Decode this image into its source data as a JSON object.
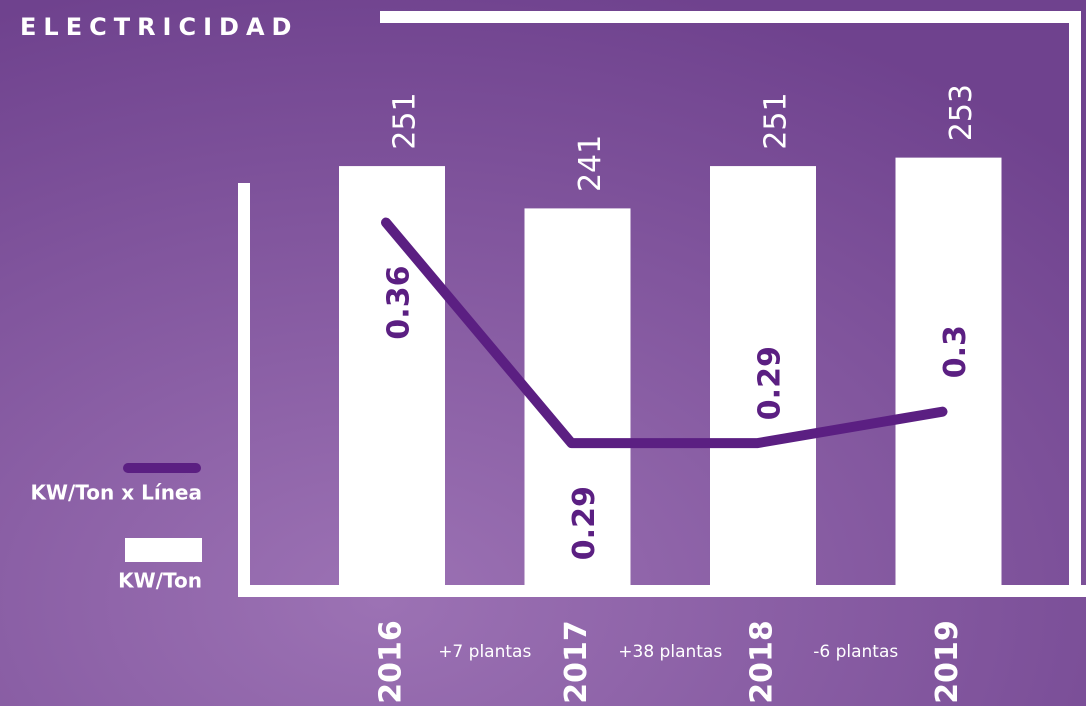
{
  "chart_data": {
    "type": "bar-line",
    "title": "ELECTRICIDAD",
    "categories": [
      "2016",
      "2017",
      "2018",
      "2019"
    ],
    "series": [
      {
        "name": "KW/Ton",
        "type": "bar",
        "color": "#ffffff",
        "values": [
          251,
          241,
          251,
          253
        ]
      },
      {
        "name": "KW/Ton x Línea",
        "type": "line",
        "axis": "y2",
        "color": "#5b1f82",
        "values": [
          0.36,
          0.29,
          0.29,
          0.3
        ]
      }
    ],
    "annotations": [
      "+7 plantas",
      "+38 plantas",
      "-6 plantas"
    ],
    "ylim": [
      152,
      260
    ],
    "y2lim": [
      0.245,
      0.39
    ],
    "legend": "left"
  }
}
